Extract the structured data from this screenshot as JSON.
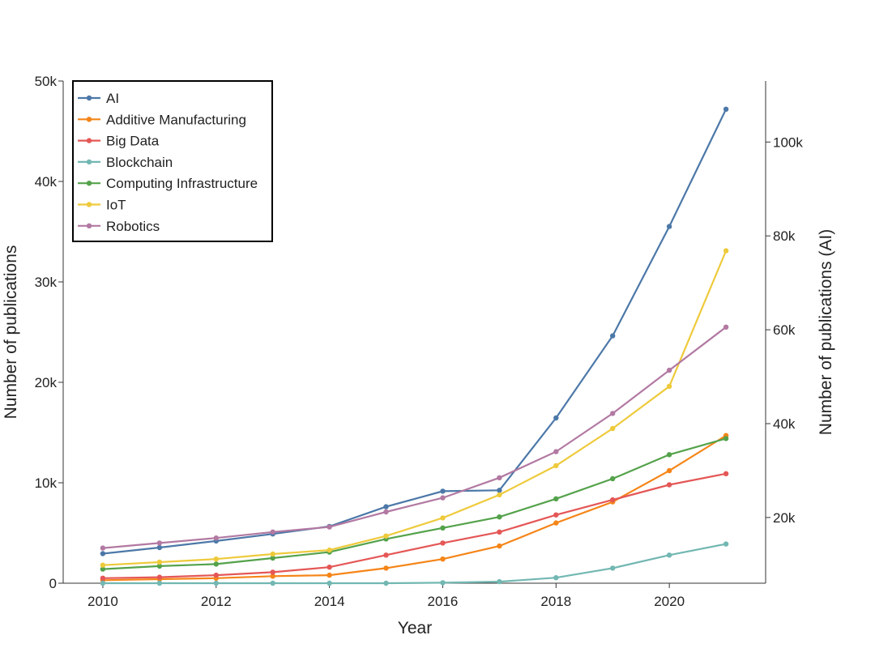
{
  "chart_data": {
    "type": "line",
    "xlabel": "Year",
    "ylabel": "Number of publications",
    "y2label": "Number of publications (AI)",
    "x": [
      2010,
      2011,
      2012,
      2013,
      2014,
      2015,
      2016,
      2017,
      2018,
      2019,
      2020,
      2021
    ],
    "x_ticks": [
      "2010",
      "2012",
      "2014",
      "2016",
      "2018",
      "2020"
    ],
    "x_range": [
      2009.3,
      2021.7
    ],
    "ylim": [
      0,
      50000
    ],
    "y_ticks": [
      "0",
      "10k",
      "20k",
      "30k",
      "40k",
      "50k"
    ],
    "y2lim": [
      6000,
      113000
    ],
    "y2_ticks": [
      "20k",
      "40k",
      "60k",
      "80k",
      "100k"
    ],
    "grid": false,
    "legend_position": "top-left",
    "series": [
      {
        "name": "AI",
        "axis": "right",
        "color": "#4c78a8",
        "values": [
          12300,
          13600,
          15000,
          16500,
          18100,
          22300,
          25600,
          25800,
          41200,
          58700,
          82000,
          107000
        ]
      },
      {
        "name": "Additive Manufacturing",
        "axis": "left",
        "color": "#f58518",
        "values": [
          300,
          400,
          500,
          700,
          800,
          1500,
          2400,
          3700,
          6000,
          8100,
          11200,
          14700
        ]
      },
      {
        "name": "Big Data",
        "axis": "left",
        "color": "#e45756",
        "values": [
          500,
          600,
          800,
          1100,
          1600,
          2800,
          4000,
          5100,
          6800,
          8300,
          9800,
          10900
        ]
      },
      {
        "name": "Blockchain",
        "axis": "left",
        "color": "#72b7b2",
        "values": [
          0,
          0,
          0,
          0,
          0,
          0,
          50,
          150,
          550,
          1500,
          2800,
          3900
        ]
      },
      {
        "name": "Computing Infrastructure",
        "axis": "left",
        "color": "#54a24b",
        "values": [
          1400,
          1700,
          1900,
          2500,
          3100,
          4400,
          5500,
          6600,
          8400,
          10400,
          12800,
          14400
        ]
      },
      {
        "name": "IoT",
        "axis": "left",
        "color": "#eeca3b",
        "values": [
          1800,
          2100,
          2400,
          2900,
          3300,
          4700,
          6500,
          8800,
          11700,
          15400,
          19600,
          33100
        ]
      },
      {
        "name": "Robotics",
        "axis": "left",
        "color": "#b279a2",
        "values": [
          3500,
          4000,
          4500,
          5100,
          5600,
          7100,
          8500,
          10500,
          13100,
          16900,
          21200,
          25500
        ]
      }
    ]
  }
}
